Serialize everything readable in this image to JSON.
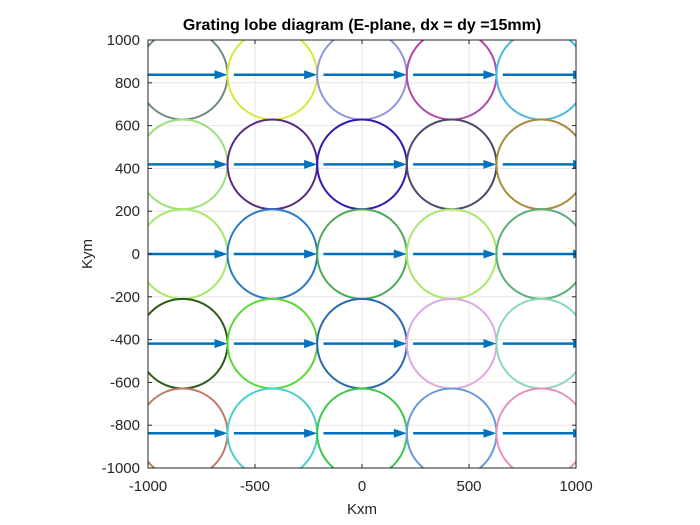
{
  "chart_data": {
    "type": "scatter",
    "title": "Grating lobe diagram (E-plane, dx = dy =15mm)",
    "xlabel": "Kxm",
    "ylabel": "Kym",
    "xlim": [
      -1000,
      1000
    ],
    "ylim": [
      -1000,
      1000
    ],
    "grid": true,
    "x_ticks": [
      -1000,
      -500,
      0,
      500,
      1000
    ],
    "x_tick_labels": [
      "-1000",
      "-500",
      "0",
      "500",
      "1000"
    ],
    "y_ticks": [
      -1000,
      -800,
      -600,
      -400,
      -200,
      0,
      200,
      400,
      600,
      800,
      1000
    ],
    "y_tick_labels": [
      "-1000",
      "-800",
      "-600",
      "-400",
      "-200",
      "0",
      "200",
      "400",
      "600",
      "800",
      "1000"
    ],
    "circle_radius": 209.4,
    "arrow_length": 209.4,
    "centers_x": [
      -837.8,
      -418.9,
      0,
      418.9,
      837.8
    ],
    "centers_y": [
      837.8,
      418.9,
      0,
      -418.9,
      -837.8
    ],
    "circle_colors": [
      [
        "#6f8a84",
        "#d6e83a",
        "#8e98d8",
        "#b048a8",
        "#48b8e0"
      ],
      [
        "#9ee07a",
        "#5a2a84",
        "#3418b0",
        "#4a4a6a",
        "#a88a3a"
      ],
      [
        "#a8e868",
        "#2a7ac8",
        "#4ea858",
        "#a8e868",
        "#5aae7a"
      ],
      [
        "#2e5a18",
        "#5ad838",
        "#2a68b0",
        "#e0a8e0",
        "#8ad8b8"
      ],
      [
        "#c07a68",
        "#48d0d0",
        "#3ac848",
        "#6a9ad8",
        "#e890c0"
      ]
    ],
    "arrow_color": "#0072bd"
  }
}
